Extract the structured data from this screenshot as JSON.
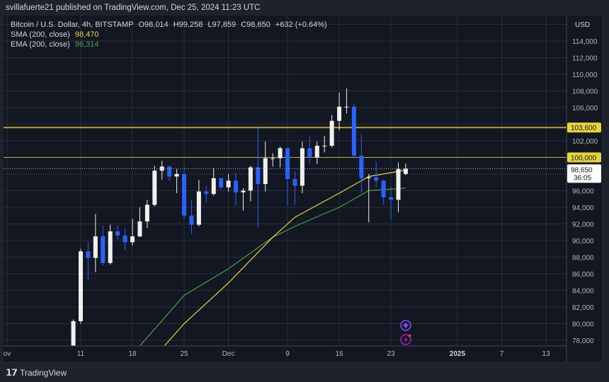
{
  "header": {
    "publisher": "svillafuerte21 published on TradingView.com, Dec 25, 2024 11:23 UTC",
    "symbol": "Bitcoin / U.S. Dollar, 4h, BITSTAMP",
    "open": "O98,014",
    "high": "H99,258",
    "low": "L97,859",
    "close": "C98,650",
    "change": "+632 (+0.64%)"
  },
  "indicators": [
    {
      "label": "SMA (200, close)",
      "value": "98,470",
      "color": "#e6d43a"
    },
    {
      "label": "EMA (200, close)",
      "value": "96,314",
      "color": "#43a047"
    }
  ],
  "footer": {
    "brand": "TradingView"
  },
  "chart_data": {
    "type": "candlestick",
    "currency": "USD",
    "ylim": [
      77000,
      116000
    ],
    "y_ticks": [
      "114,000",
      "112,000",
      "110,000",
      "108,000",
      "106,000",
      "102,000",
      "96,000",
      "94,000",
      "92,000",
      "90,000",
      "88,000",
      "86,000",
      "84,000",
      "82,000",
      "80,000",
      "78,000"
    ],
    "x_ticks": [
      {
        "label": "ov",
        "date": "2024-11-01"
      },
      {
        "label": "11",
        "date": "2024-11-11"
      },
      {
        "label": "18",
        "date": "2024-11-18"
      },
      {
        "label": "25",
        "date": "2024-11-25"
      },
      {
        "label": "Dec",
        "date": "2024-12-01"
      },
      {
        "label": "9",
        "date": "2024-12-09"
      },
      {
        "label": "16",
        "date": "2024-12-16"
      },
      {
        "label": "23",
        "date": "2024-12-23"
      },
      {
        "label": "2025",
        "date": "2025-01-01",
        "bold": true
      },
      {
        "label": "7",
        "date": "2025-01-07"
      },
      {
        "label": "13",
        "date": "2025-01-13"
      }
    ],
    "up_color": "#f0f0f0",
    "down_color": "#2962ff",
    "candles_ohlc_daily": [
      [
        "2024-11-10",
        77000,
        80500,
        76500,
        80300
      ],
      [
        "2024-11-11",
        80300,
        89000,
        80000,
        88700
      ],
      [
        "2024-11-12",
        88700,
        89800,
        85200,
        87900
      ],
      [
        "2024-11-13",
        87900,
        93200,
        86200,
        90500
      ],
      [
        "2024-11-14",
        90500,
        91800,
        87000,
        87300
      ],
      [
        "2024-11-15",
        87300,
        91900,
        87100,
        91100
      ],
      [
        "2024-11-16",
        91100,
        91800,
        90100,
        90600
      ],
      [
        "2024-11-17",
        90600,
        91500,
        88800,
        89800
      ],
      [
        "2024-11-18",
        89800,
        92600,
        89400,
        90500
      ],
      [
        "2024-11-19",
        90500,
        94000,
        90400,
        92300
      ],
      [
        "2024-11-20",
        92300,
        94900,
        91500,
        94300
      ],
      [
        "2024-11-21",
        94300,
        99000,
        94100,
        98400
      ],
      [
        "2024-11-22",
        98400,
        99600,
        97300,
        98900
      ],
      [
        "2024-11-23",
        98900,
        99000,
        97200,
        97700
      ],
      [
        "2024-11-24",
        97700,
        98600,
        95700,
        98000
      ],
      [
        "2024-11-25",
        98000,
        98900,
        92600,
        93000
      ],
      [
        "2024-11-26",
        93000,
        94900,
        90800,
        91900
      ],
      [
        "2024-11-27",
        91900,
        97300,
        91700,
        95900
      ],
      [
        "2024-11-28",
        95900,
        96600,
        94600,
        95600
      ],
      [
        "2024-11-29",
        95600,
        98700,
        95400,
        97500
      ],
      [
        "2024-11-30",
        97500,
        97500,
        96100,
        96400
      ],
      [
        "2024-12-01",
        96400,
        98000,
        95900,
        97200
      ],
      [
        "2024-12-02",
        97200,
        98100,
        94200,
        95800
      ],
      [
        "2024-12-03",
        95800,
        96300,
        93600,
        96000
      ],
      [
        "2024-12-04",
        96000,
        99000,
        94700,
        98800
      ],
      [
        "2024-12-05",
        98800,
        103800,
        91500,
        96800
      ],
      [
        "2024-12-06",
        96800,
        101900,
        95900,
        99900
      ],
      [
        "2024-12-07",
        99900,
        100500,
        98900,
        99900
      ],
      [
        "2024-12-08",
        99900,
        101300,
        98800,
        101100
      ],
      [
        "2024-12-09",
        101100,
        101200,
        94200,
        97400
      ],
      [
        "2024-12-10",
        97400,
        98300,
        94300,
        96600
      ],
      [
        "2024-12-11",
        96600,
        101900,
        95700,
        101100
      ],
      [
        "2024-12-12",
        101100,
        102500,
        99300,
        100000
      ],
      [
        "2024-12-13",
        100000,
        101900,
        99200,
        101400
      ],
      [
        "2024-12-14",
        101400,
        102600,
        100600,
        101400
      ],
      [
        "2024-12-15",
        101400,
        105100,
        101200,
        104400
      ],
      [
        "2024-12-16",
        104400,
        107800,
        103300,
        106100
      ],
      [
        "2024-12-17",
        106100,
        108300,
        105300,
        106100
      ],
      [
        "2024-12-18",
        106100,
        106500,
        100000,
        100200
      ],
      [
        "2024-12-19",
        100200,
        102800,
        95700,
        97500
      ],
      [
        "2024-12-20",
        97500,
        98000,
        92200,
        97600
      ],
      [
        "2024-12-21",
        97600,
        99500,
        96400,
        97200
      ],
      [
        "2024-12-22",
        97200,
        97300,
        94300,
        95200
      ],
      [
        "2024-12-23",
        95200,
        96500,
        92500,
        94900
      ],
      [
        "2024-12-24",
        94900,
        99400,
        93400,
        98600
      ],
      [
        "2024-12-25",
        98014,
        99258,
        97859,
        98650
      ]
    ],
    "sma_200": [
      [
        "2024-11-22",
        77000
      ],
      [
        "2024-11-25",
        80000
      ],
      [
        "2024-12-01",
        84900
      ],
      [
        "2024-12-07",
        90400
      ],
      [
        "2024-12-10",
        92800
      ],
      [
        "2024-12-16",
        95700
      ],
      [
        "2024-12-20",
        97700
      ],
      [
        "2024-12-25",
        98470
      ]
    ],
    "ema_200": [
      [
        "2024-11-19",
        77300
      ],
      [
        "2024-11-25",
        83400
      ],
      [
        "2024-12-01",
        86600
      ],
      [
        "2024-12-07",
        90400
      ],
      [
        "2024-12-10",
        91700
      ],
      [
        "2024-12-16",
        94000
      ],
      [
        "2024-12-20",
        96000
      ],
      [
        "2024-12-25",
        96314
      ]
    ],
    "horizontal_lines": [
      {
        "price": 103600,
        "label": "103,600",
        "color": "#e6d43a"
      },
      {
        "price": 100000,
        "label": "100,000",
        "color": "#e6d43a"
      }
    ],
    "last_price": {
      "label": "98,650",
      "countdown": "36:05"
    },
    "event_icons": [
      "sparkle-icon",
      "lightning-icon"
    ]
  }
}
